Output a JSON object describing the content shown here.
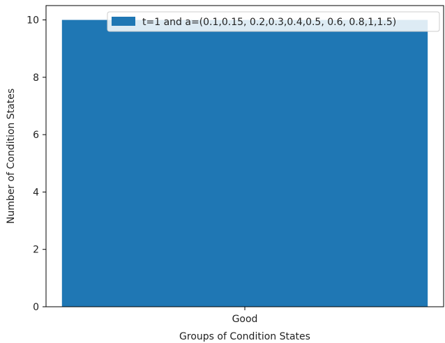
{
  "chart_data": {
    "type": "bar",
    "categories": [
      "Good"
    ],
    "series": [
      {
        "name": "t=1 and a=(0.1,0.15, 0.2,0.3,0.4,0.5, 0.6, 0.8,1,1.5)",
        "values": [
          10
        ],
        "color": "#1f77b4"
      }
    ],
    "xlabel": "Groups of Condition States",
    "ylabel": "Number of Condition States",
    "ylim": [
      0,
      10.5
    ],
    "yticks": [
      0,
      2,
      4,
      6,
      8,
      10
    ],
    "grid": false,
    "legend_position": "top-right"
  }
}
